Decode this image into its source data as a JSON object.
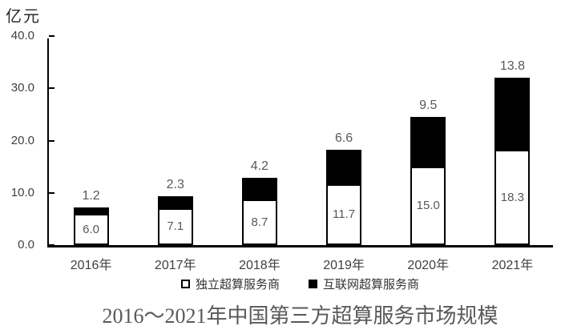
{
  "unit_label": "亿元",
  "title": "2016～2021年中国第三方超算服务市场规模",
  "chart_data": {
    "type": "bar",
    "stacked": true,
    "title": "2016～2021年中国第三方超算服务市场规模",
    "ylabel": "亿元",
    "ylim": [
      0,
      40
    ],
    "yticks": [
      0,
      10,
      20,
      30,
      40
    ],
    "ytick_labels": [
      "0.0",
      "10.0",
      "20.0",
      "30.0",
      "40.0"
    ],
    "grid": false,
    "legend_position": "bottom",
    "categories": [
      "2016年",
      "2017年",
      "2018年",
      "2019年",
      "2020年",
      "2021年"
    ],
    "series": [
      {
        "name": "独立超算服务商",
        "color": "#ffffff",
        "label_position": "inside",
        "values": [
          6.0,
          7.1,
          8.7,
          11.7,
          15.0,
          18.3
        ]
      },
      {
        "name": "互联网超算服务商",
        "color": "#000000",
        "label_position": "above",
        "values": [
          1.2,
          2.3,
          4.2,
          6.6,
          9.5,
          13.8
        ]
      }
    ],
    "colors": {
      "axis": "#000000",
      "value_labels": "#595959",
      "tick_labels": "#404040",
      "title": "#595959"
    }
  }
}
